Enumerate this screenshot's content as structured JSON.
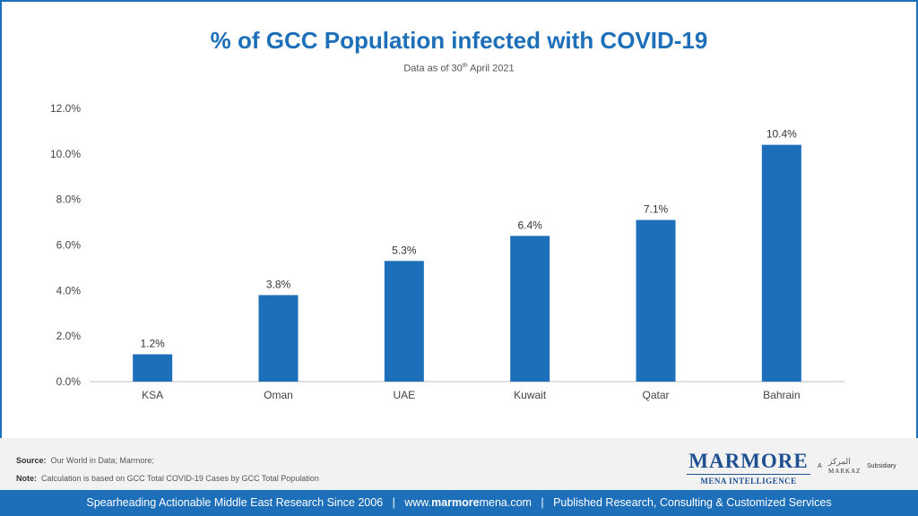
{
  "title": "% of GCC Population infected with COVID-19",
  "subtitle": {
    "prefix": "Data as of 30",
    "sup": "th",
    "suffix": " April 2021"
  },
  "chart_data": {
    "type": "bar",
    "categories": [
      "KSA",
      "Oman",
      "UAE",
      "Kuwait",
      "Qatar",
      "Bahrain"
    ],
    "values": [
      1.2,
      3.8,
      5.3,
      6.4,
      7.1,
      10.4
    ],
    "value_labels": [
      "1.2%",
      "3.8%",
      "5.3%",
      "6.4%",
      "7.1%",
      "10.4%"
    ],
    "yticks": [
      "0.0%",
      "2.0%",
      "4.0%",
      "6.0%",
      "8.0%",
      "10.0%",
      "12.0%"
    ],
    "ylim": [
      0,
      12
    ],
    "grid": false,
    "bar_color": "#1e6fb9"
  },
  "notes": {
    "source_label": "Source:",
    "source_text": "Our World in Data; Marmore;",
    "note_label": "Note:",
    "note_text": "Calculation is based on GCC Total COVID-19 Cases by GCC Total Population"
  },
  "logo": {
    "main": "MARMORE",
    "sub": "MENA INTELLIGENCE",
    "a": "A",
    "arabic": "المركز",
    "markaz": "MARKAZ",
    "subsidiary": "Subsidiary"
  },
  "footer": {
    "left": "Spearheading Actionable Middle East Research Since 2006",
    "sep1": "|",
    "www": "www.",
    "brand": "marmore",
    "domain": "mena.com",
    "sep2": "|",
    "right": "Published Research, Consulting & Customized Services"
  }
}
